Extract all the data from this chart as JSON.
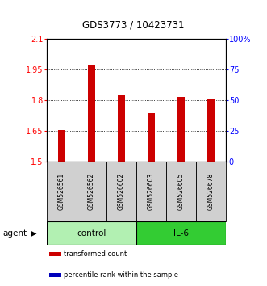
{
  "title": "GDS3773 / 10423731",
  "samples": [
    "GSM526561",
    "GSM526562",
    "GSM526602",
    "GSM526603",
    "GSM526605",
    "GSM526678"
  ],
  "red_values": [
    1.655,
    1.968,
    1.825,
    1.735,
    1.815,
    1.808
  ],
  "blue_values": [
    1.502,
    1.502,
    1.502,
    1.502,
    1.502,
    1.502
  ],
  "ylim_left": [
    1.5,
    2.1
  ],
  "ylim_right": [
    0,
    100
  ],
  "yticks_left": [
    1.5,
    1.65,
    1.8,
    1.95,
    2.1
  ],
  "yticks_right": [
    0,
    25,
    50,
    75,
    100
  ],
  "ytick_labels_left": [
    "1.5",
    "1.65",
    "1.8",
    "1.95",
    "2.1"
  ],
  "ytick_labels_right": [
    "0",
    "25",
    "50",
    "75",
    "100%"
  ],
  "control_label": "control",
  "il6_label": "IL-6",
  "agent_label": "agent",
  "legend_red": "transformed count",
  "legend_blue": "percentile rank within the sample",
  "control_color": "#b2f0b2",
  "il6_color": "#33cc33",
  "bar_color_red": "#cc0000",
  "bar_color_blue": "#0000bb",
  "sample_box_color": "#d0d0d0"
}
